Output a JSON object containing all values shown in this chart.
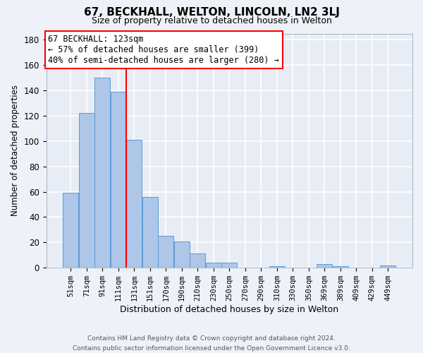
{
  "title": "67, BECKHALL, WELTON, LINCOLN, LN2 3LJ",
  "subtitle": "Size of property relative to detached houses in Welton",
  "xlabel": "Distribution of detached houses by size in Welton",
  "ylabel": "Number of detached properties",
  "bar_labels": [
    "51sqm",
    "71sqm",
    "91sqm",
    "111sqm",
    "131sqm",
    "151sqm",
    "170sqm",
    "190sqm",
    "210sqm",
    "230sqm",
    "250sqm",
    "270sqm",
    "290sqm",
    "310sqm",
    "330sqm",
    "350sqm",
    "369sqm",
    "389sqm",
    "409sqm",
    "429sqm",
    "449sqm"
  ],
  "bar_values": [
    59,
    122,
    150,
    139,
    101,
    56,
    25,
    21,
    11,
    4,
    4,
    0,
    0,
    1,
    0,
    0,
    3,
    1,
    0,
    0,
    2
  ],
  "bar_color": "#aec6e8",
  "bar_edge_color": "#5b9bd5",
  "vline_color": "red",
  "annotation_title": "67 BECKHALL: 123sqm",
  "annotation_line1": "← 57% of detached houses are smaller (399)",
  "annotation_line2": "40% of semi-detached houses are larger (280) →",
  "annotation_box_color": "white",
  "annotation_box_edge_color": "red",
  "ylim": [
    0,
    185
  ],
  "yticks": [
    0,
    20,
    40,
    60,
    80,
    100,
    120,
    140,
    160,
    180
  ],
  "footer_line1": "Contains HM Land Registry data © Crown copyright and database right 2024.",
  "footer_line2": "Contains public sector information licensed under the Open Government Licence v3.0.",
  "bg_color": "#eef2f8",
  "plot_bg_color": "#e8edf5",
  "grid_color": "white"
}
